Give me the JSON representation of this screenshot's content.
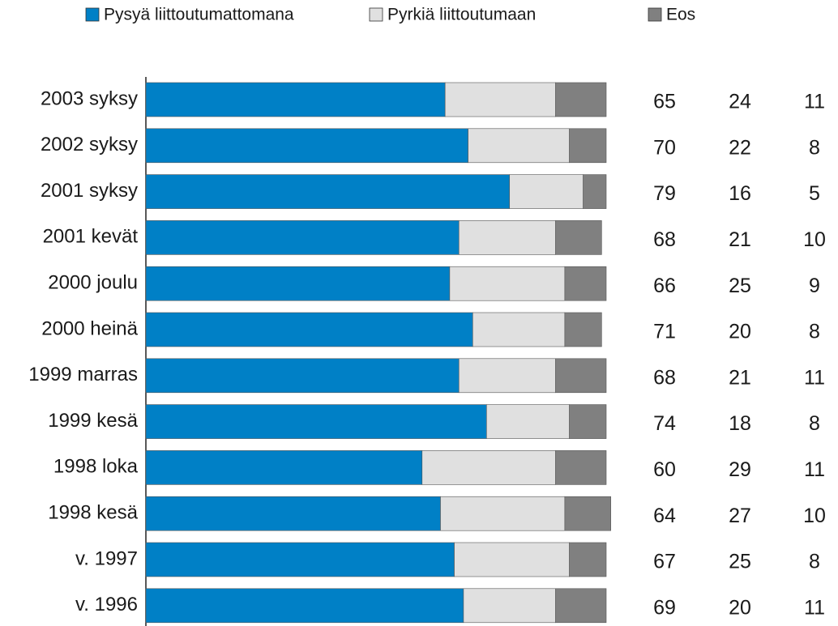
{
  "chart_data": {
    "type": "stacked-bar-horizontal",
    "categories": [
      "2003 syksy",
      "2002 syksy",
      "2001 syksy",
      "2001 kevät",
      "2000 joulu",
      "2000 heinä",
      "1999 marras",
      "1999 kesä",
      "1998 loka",
      "1998 kesä",
      "v. 1997",
      "v. 1996"
    ],
    "series": [
      {
        "name": "Pysyä liittoutumattomana",
        "color": "#0080c6",
        "values": [
          65,
          70,
          79,
          68,
          66,
          71,
          68,
          74,
          60,
          64,
          67,
          69
        ]
      },
      {
        "name": "Pyrkiä liittoutumaan",
        "color": "#e0e0e0",
        "values": [
          24,
          22,
          16,
          21,
          25,
          20,
          21,
          18,
          29,
          27,
          25,
          20
        ]
      },
      {
        "name": "Eos",
        "color": "#808080",
        "values": [
          11,
          8,
          5,
          10,
          9,
          8,
          11,
          8,
          11,
          10,
          8,
          11
        ]
      }
    ],
    "xlim": [
      0,
      100
    ]
  }
}
